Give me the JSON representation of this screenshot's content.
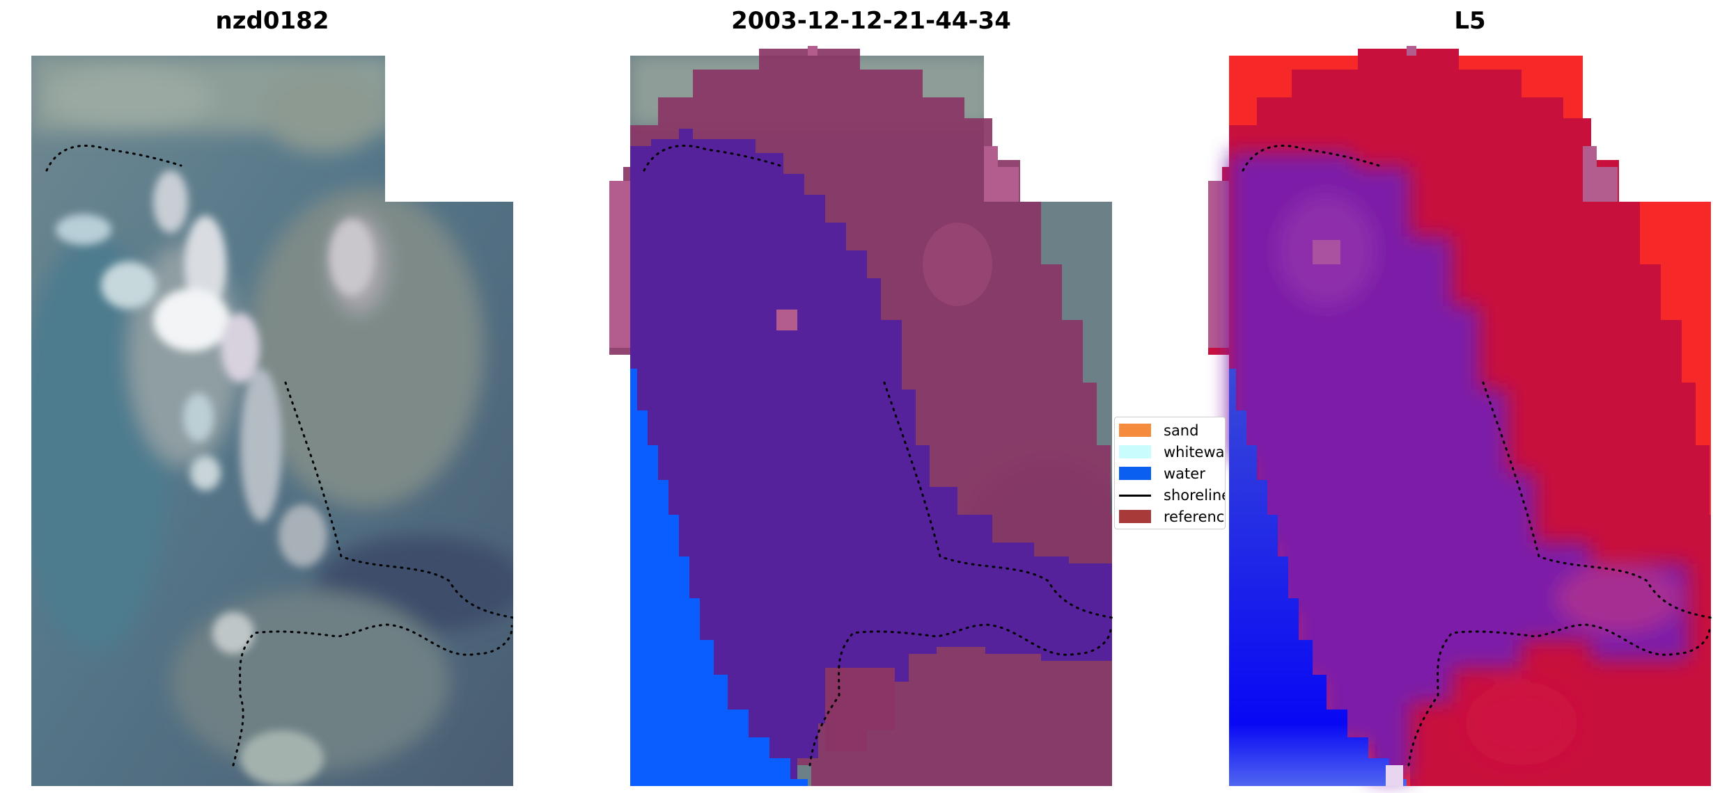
{
  "panels": [
    {
      "title": "nzd0182"
    },
    {
      "title": "2003-12-12-21-44-34"
    },
    {
      "title": "L5"
    }
  ],
  "legend": {
    "items": [
      {
        "label": "sand",
        "kind": "patch",
        "color": "#f48b3d"
      },
      {
        "label": "whitewat",
        "kind": "patch",
        "color": "#c9fdfd"
      },
      {
        "label": "water",
        "kind": "patch",
        "color": "#0b5ff0"
      },
      {
        "label": "shoreline",
        "kind": "line",
        "color": "#000000"
      },
      {
        "label": "reference",
        "kind": "patch",
        "color": "#a83a3a"
      }
    ]
  },
  "colors": {
    "classified_water": "#0a5dff",
    "classified_overlay_purple": "#55229c",
    "classified_overlay_maroon": "#8a3565",
    "index_blue": "#1010f2",
    "index_red": "#c8103c"
  }
}
